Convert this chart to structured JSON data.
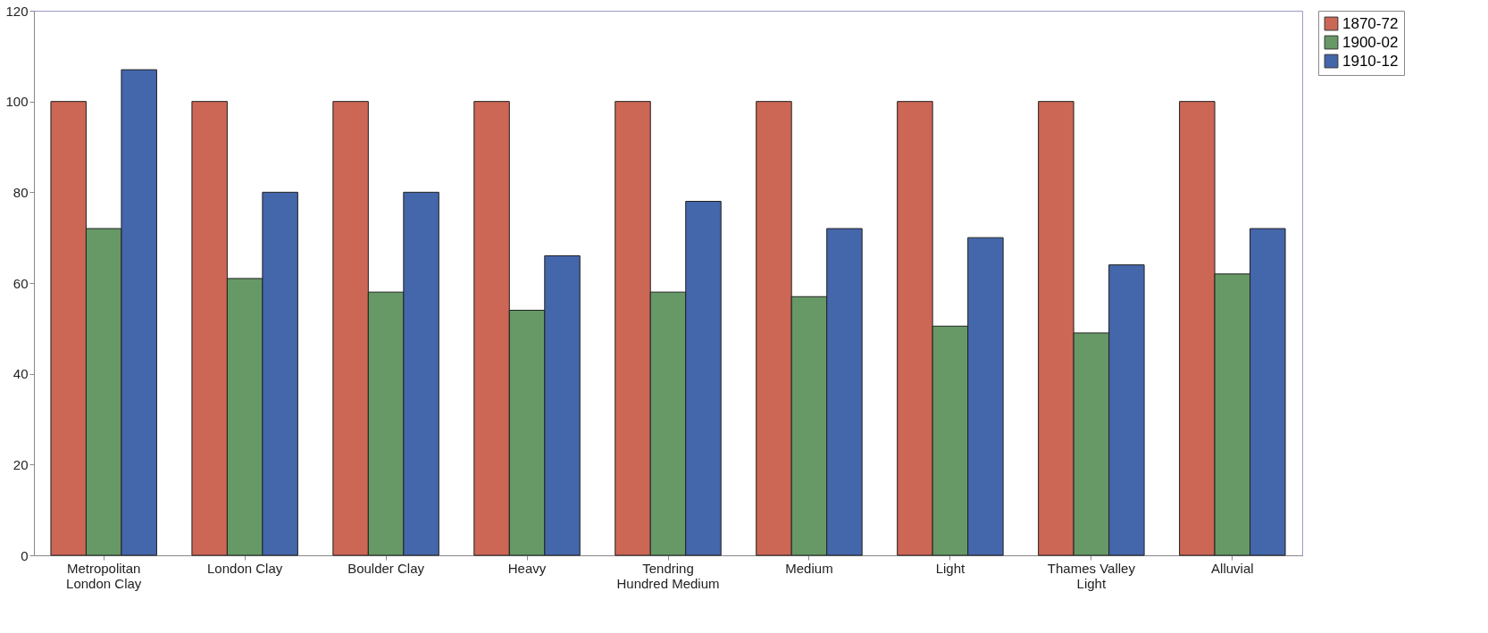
{
  "chart_data": {
    "type": "bar",
    "categories": [
      "Metropolitan London Clay",
      "London Clay",
      "Boulder Clay",
      "Heavy",
      "Tendring Hundred Medium",
      "Medium",
      "Light",
      "Thames Valley Light",
      "Alluvial"
    ],
    "series": [
      {
        "name": "1870-72",
        "color": "#cc6655",
        "values": [
          100,
          100,
          100,
          100,
          100,
          100,
          100,
          100,
          100
        ]
      },
      {
        "name": "1900-02",
        "color": "#669966",
        "values": [
          72,
          61,
          58,
          54,
          58,
          57,
          50.5,
          49,
          62
        ]
      },
      {
        "name": "1910-12",
        "color": "#4466aa",
        "values": [
          107,
          80,
          80,
          66,
          78,
          72,
          70,
          64,
          72
        ]
      }
    ],
    "ylim": [
      0,
      120
    ],
    "yticks": [
      0,
      20,
      40,
      60,
      80,
      100,
      120
    ],
    "grid": false,
    "legend": "right"
  }
}
